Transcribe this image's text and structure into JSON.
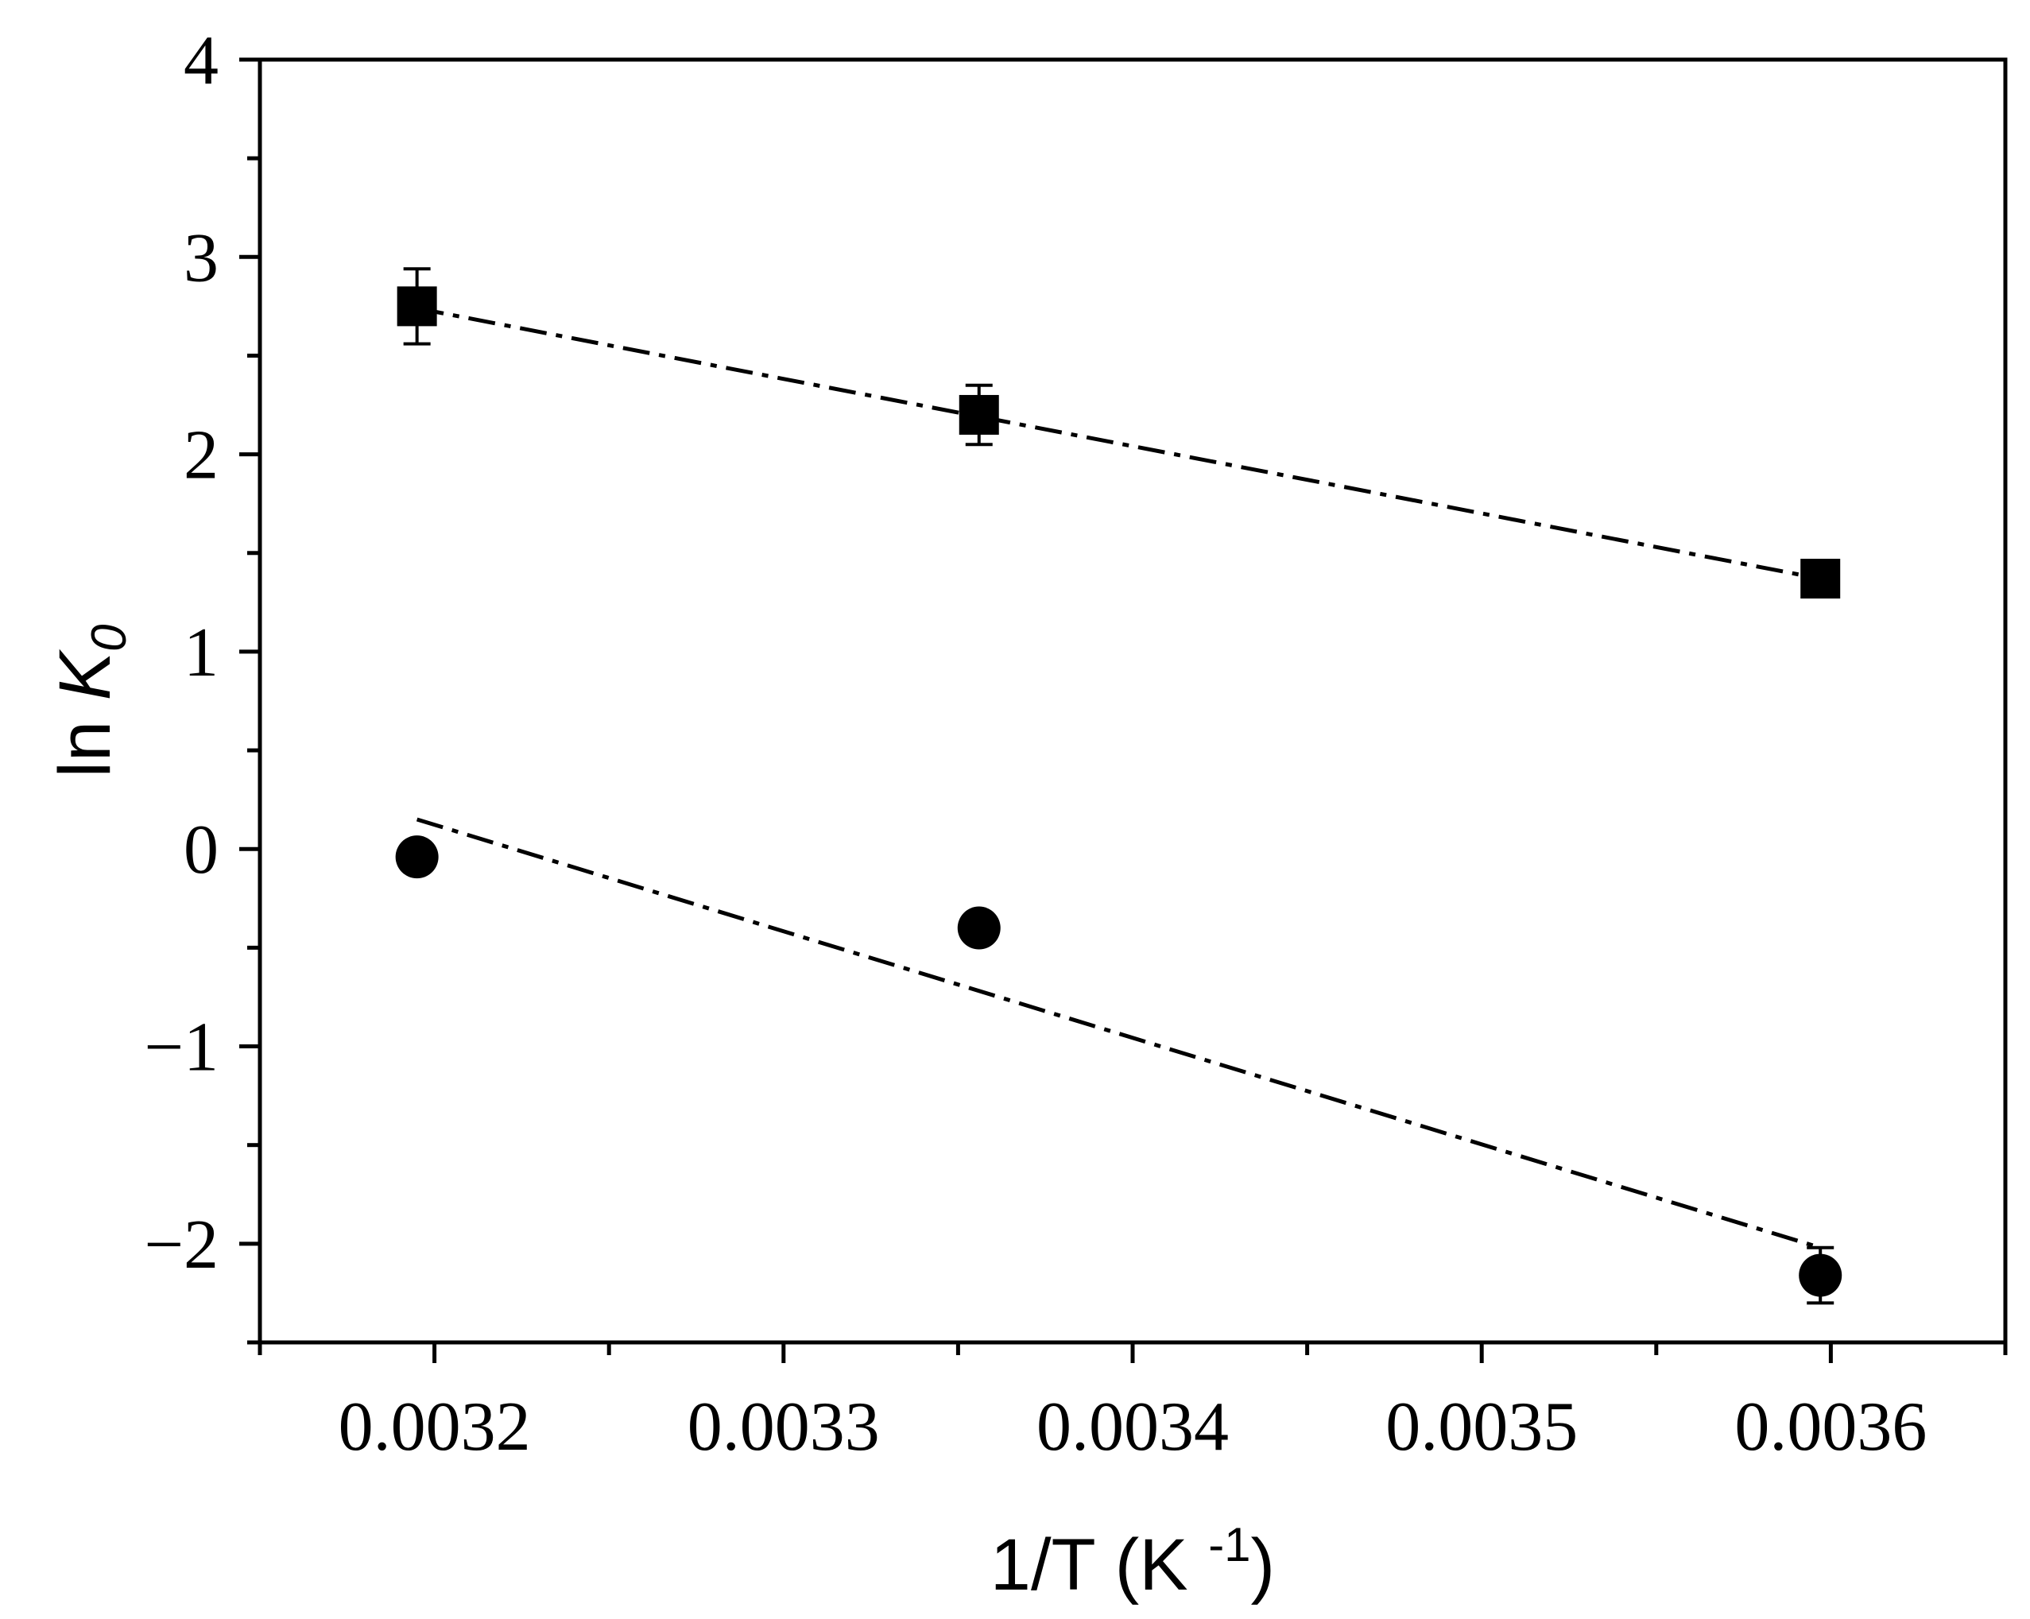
{
  "chart_data": {
    "type": "scatter",
    "title": "",
    "xlabel": {
      "main": "1/T (K ",
      "superscript": "-1",
      "close": ")"
    },
    "ylabel": {
      "prefix": "ln ",
      "var": "K",
      "subscript": "0"
    },
    "xlim": [
      0.00315,
      0.00365
    ],
    "ylim": [
      -2.5,
      4
    ],
    "xticks": [
      0.0032,
      0.0033,
      0.0034,
      0.0035,
      0.0036
    ],
    "xtick_labels": [
      "0.0032",
      "0.0033",
      "0.0034",
      "0.0035",
      "0.0036"
    ],
    "yticks": [
      -2,
      -1,
      0,
      1,
      2,
      3,
      4
    ],
    "ytick_labels": [
      "−2",
      "−1",
      "0",
      "1",
      "2",
      "3",
      "4"
    ],
    "grid": false,
    "series": [
      {
        "name": "squares",
        "marker": "square",
        "x": [
          0.003195,
          0.003356,
          0.003597
        ],
        "y": [
          2.75,
          2.2,
          1.37
        ],
        "yerr": [
          0.19,
          0.15,
          0.05
        ],
        "fit": {
          "x": [
            0.003195,
            0.003597
          ],
          "y": [
            2.74,
            1.37
          ]
        }
      },
      {
        "name": "circles",
        "marker": "circle",
        "x": [
          0.003195,
          0.003356,
          0.003597
        ],
        "y": [
          -0.04,
          -0.4,
          -2.16
        ],
        "yerr": [
          0.0,
          0.0,
          0.14
        ],
        "fit": {
          "x": [
            0.003195,
            0.003597
          ],
          "y": [
            0.15,
            -2.02
          ]
        }
      }
    ]
  }
}
